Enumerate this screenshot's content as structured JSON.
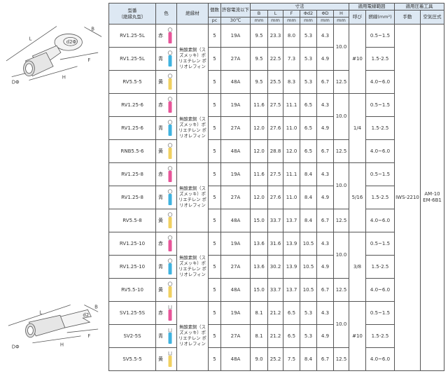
{
  "header": {
    "model": "型番",
    "model_sub": "（絶縁丸型）",
    "color": "色",
    "insulation": "絶縁材",
    "qty": "個数",
    "current": "許容電流以下",
    "dimensions": "寸法",
    "wire_range": "適用電線範囲",
    "tools": "適用圧着工具",
    "B": "B",
    "L": "L",
    "F": "F",
    "d2": "Φd2",
    "D": "ΦD",
    "H": "H",
    "size": "呼び",
    "stranded": "撚線(mm²)",
    "manual": "手動",
    "pneumatic": "空気圧式",
    "unit_qty": "pc",
    "unit_current": "30℃",
    "unit_mm": "mm"
  },
  "tools": {
    "manual": "IWS-2210",
    "pneumatic": "AM-10\nEM-6B1"
  },
  "diagram_ring": {
    "labels": [
      "L",
      "B",
      "d2Φ",
      "F",
      "H",
      "DΦ"
    ]
  },
  "diagram_fork": {
    "labels": [
      "L",
      "B",
      "d2",
      "F",
      "H",
      "DΦ"
    ]
  },
  "colors": {
    "赤": "#e8559a",
    "青": "#3fb3e0",
    "黄": "#f0d060"
  },
  "groups": [
    {
      "insulation": "無酸素銅（スズメッキ）ポリエチレン ポリオレフィン",
      "size": "#10",
      "h_pair": "10.0",
      "h_single": "12.5",
      "rows": [
        {
          "model": "RV1.25-5L",
          "color": "赤",
          "shape": "ring",
          "pcs": "5",
          "current": "19A",
          "B": "9.5",
          "L": "23.3",
          "F": "8.0",
          "d2": "5.3",
          "D": "4.3",
          "stranded": "0.5~1.5"
        },
        {
          "model": "RV1.25-5L",
          "color": "青",
          "shape": "ring",
          "pcs": "5",
          "current": "27A",
          "B": "9.5",
          "L": "22.5",
          "F": "7.3",
          "d2": "5.3",
          "D": "4.9",
          "stranded": "1.5-2.5"
        },
        {
          "model": "RV5.5-5",
          "color": "黄",
          "shape": "ring",
          "pcs": "5",
          "current": "48A",
          "B": "9.5",
          "L": "25.5",
          "F": "8.3",
          "d2": "5.3",
          "D": "6.7",
          "stranded": "4.0~6.0"
        }
      ]
    },
    {
      "insulation": "無酸素銅（スズメッキ）ポリエチレン ポリオレフィン",
      "size": "1/4",
      "h_pair": "10.0",
      "h_single": "12.5",
      "rows": [
        {
          "model": "RV1.25-6",
          "color": "赤",
          "shape": "ring",
          "pcs": "5",
          "current": "19A",
          "B": "11.6",
          "L": "27.5",
          "F": "11.1",
          "d2": "6.5",
          "D": "4.3",
          "stranded": "0.5~1.5"
        },
        {
          "model": "RV1.25-6",
          "color": "青",
          "shape": "ring",
          "pcs": "5",
          "current": "27A",
          "B": "12.0",
          "L": "27.6",
          "F": "11.0",
          "d2": "6.5",
          "D": "4.9",
          "stranded": "1.5-2.5"
        },
        {
          "model": "RNB5.5-6",
          "color": "黄",
          "shape": "ring",
          "pcs": "5",
          "current": "48A",
          "B": "12.0",
          "L": "28.8",
          "F": "12.0",
          "d2": "6.5",
          "D": "6.7",
          "stranded": "4.0~6.0"
        }
      ]
    },
    {
      "insulation": "無酸素銅（スズメッキ）ポリエチレン ポリオレフィン",
      "size": "5/16",
      "h_pair": "10.0",
      "h_single": "12.5",
      "rows": [
        {
          "model": "RV1.25-8",
          "color": "赤",
          "shape": "ring",
          "pcs": "5",
          "current": "19A",
          "B": "11.6",
          "L": "27.5",
          "F": "11.1",
          "d2": "8.4",
          "D": "4.3",
          "stranded": "0.5~1.5"
        },
        {
          "model": "RV1.25-8",
          "color": "青",
          "shape": "ring",
          "pcs": "5",
          "current": "27A",
          "B": "12.0",
          "L": "27.6",
          "F": "11.0",
          "d2": "8.4",
          "D": "4.9",
          "stranded": "1.5-2.5"
        },
        {
          "model": "RV5.5-8",
          "color": "黄",
          "shape": "ring",
          "pcs": "5",
          "current": "48A",
          "B": "15.0",
          "L": "33.7",
          "F": "13.7",
          "d2": "8.4",
          "D": "6.7",
          "stranded": "4.0~6.0"
        }
      ]
    },
    {
      "insulation": "無酸素銅（スズメッキ）ポリエチレン ポリオレフィン",
      "size": "3/8",
      "h_pair": "10.0",
      "h_single": "12.5",
      "rows": [
        {
          "model": "RV1.25-10",
          "color": "赤",
          "shape": "ring",
          "pcs": "5",
          "current": "19A",
          "B": "13.6",
          "L": "31.6",
          "F": "13.9",
          "d2": "10.5",
          "D": "4.3",
          "stranded": "0.5~1.5"
        },
        {
          "model": "RV1.25-10",
          "color": "青",
          "shape": "ring",
          "pcs": "5",
          "current": "27A",
          "B": "13.6",
          "L": "30.2",
          "F": "13.9",
          "d2": "10.5",
          "D": "4.9",
          "stranded": "1.5-2.5"
        },
        {
          "model": "RV5.5-10",
          "color": "黄",
          "shape": "ring",
          "pcs": "5",
          "current": "48A",
          "B": "15.0",
          "L": "33.7",
          "F": "13.7",
          "d2": "10.5",
          "D": "6.7",
          "stranded": "4.0~6.0"
        }
      ]
    },
    {
      "insulation": "無酸素銅（スズメッキ）ポリエチレン ポリオレフィン",
      "size": "#10",
      "h_pair": "10.0",
      "h_single": "12.5",
      "rows": [
        {
          "model": "SV1.25-5S",
          "color": "赤",
          "shape": "fork",
          "pcs": "5",
          "current": "19A",
          "B": "8.1",
          "L": "21.2",
          "F": "6.5",
          "d2": "5.3",
          "D": "4.3",
          "stranded": "0.5~1.5"
        },
        {
          "model": "SV2-5S",
          "color": "青",
          "shape": "fork",
          "pcs": "5",
          "current": "27A",
          "B": "8.1",
          "L": "21.2",
          "F": "6.5",
          "d2": "5.3",
          "D": "4.9",
          "stranded": "1.5-2.5"
        },
        {
          "model": "SV5.5-5",
          "color": "黄",
          "shape": "fork",
          "pcs": "5",
          "current": "48A",
          "B": "9.0",
          "L": "25.2",
          "F": "7.5",
          "d2": "8.4",
          "D": "6.7",
          "stranded": "4.0~6.0"
        }
      ]
    }
  ]
}
